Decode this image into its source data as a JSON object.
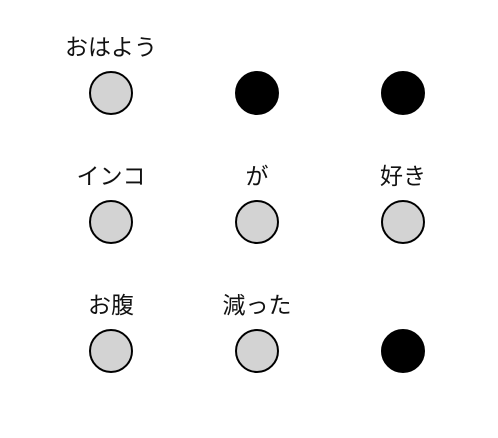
{
  "colors": {
    "empty": "#d3d3d3",
    "filled": "#000000",
    "outline": "#000000"
  },
  "grid": {
    "rows": [
      {
        "cells": [
          {
            "label": "おはよう",
            "state": "empty"
          },
          {
            "label": "",
            "state": "filled"
          },
          {
            "label": "",
            "state": "filled"
          }
        ]
      },
      {
        "cells": [
          {
            "label": "インコ",
            "state": "empty"
          },
          {
            "label": "が",
            "state": "empty"
          },
          {
            "label": "好き",
            "state": "empty"
          }
        ]
      },
      {
        "cells": [
          {
            "label": "お腹",
            "state": "empty"
          },
          {
            "label": "減った",
            "state": "empty"
          },
          {
            "label": "",
            "state": "filled"
          }
        ]
      }
    ]
  }
}
